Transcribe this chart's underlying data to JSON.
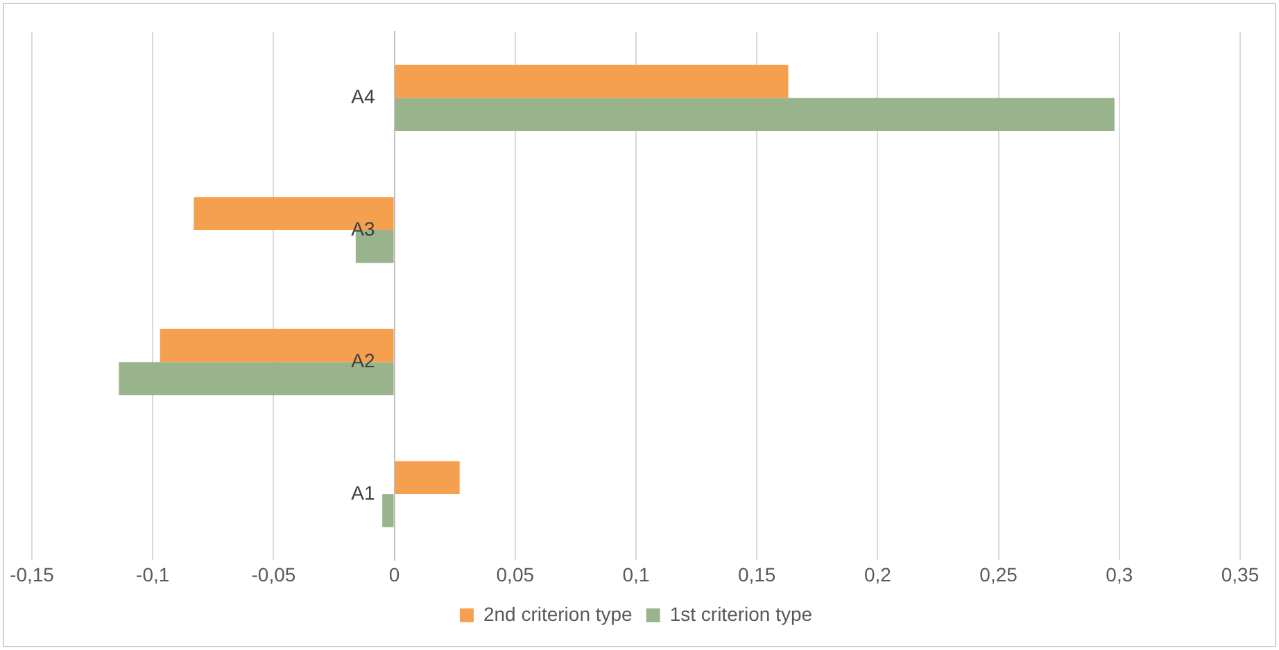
{
  "chart_data": {
    "type": "bar",
    "orientation": "horizontal",
    "categories": [
      "A4",
      "A3",
      "A2",
      "A1"
    ],
    "series": [
      {
        "name": "2nd criterion type",
        "color": "#f4a04e",
        "values": [
          0.163,
          -0.083,
          -0.097,
          0.027
        ]
      },
      {
        "name": "1st criterion type",
        "color": "#99b48d",
        "values": [
          0.298,
          -0.016,
          -0.114,
          -0.005
        ]
      }
    ],
    "xlim": [
      -0.15,
      0.35
    ],
    "xticks": [
      {
        "value": -0.15,
        "label": "-0,15"
      },
      {
        "value": -0.1,
        "label": "-0,1"
      },
      {
        "value": -0.05,
        "label": "-0,05"
      },
      {
        "value": 0,
        "label": "0"
      },
      {
        "value": 0.05,
        "label": "0,05"
      },
      {
        "value": 0.1,
        "label": "0,1"
      },
      {
        "value": 0.15,
        "label": "0,15"
      },
      {
        "value": 0.2,
        "label": "0,2"
      },
      {
        "value": 0.25,
        "label": "0,25"
      },
      {
        "value": 0.3,
        "label": "0,3"
      },
      {
        "value": 0.35,
        "label": "0,35"
      }
    ],
    "grid": "x",
    "legend": "bottom"
  }
}
